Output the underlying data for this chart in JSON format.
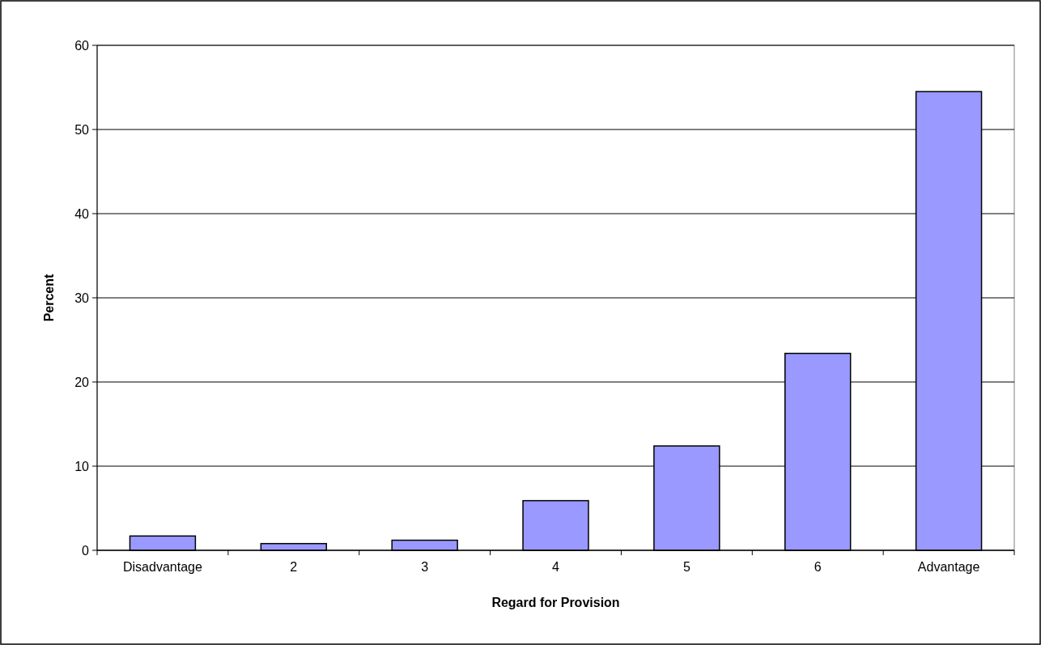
{
  "chart_data": {
    "type": "bar",
    "xlabel": "Regard for Provision",
    "ylabel": "Percent",
    "categories": [
      "Disadvantage",
      "2",
      "3",
      "4",
      "5",
      "6",
      "Advantage"
    ],
    "values": [
      1.7,
      0.8,
      1.2,
      5.9,
      12.4,
      23.4,
      54.5
    ],
    "color": "#9999ff",
    "ylim": [
      0,
      60
    ],
    "yticks": [
      0,
      10,
      20,
      30,
      40,
      50,
      60
    ],
    "grid": "y"
  }
}
